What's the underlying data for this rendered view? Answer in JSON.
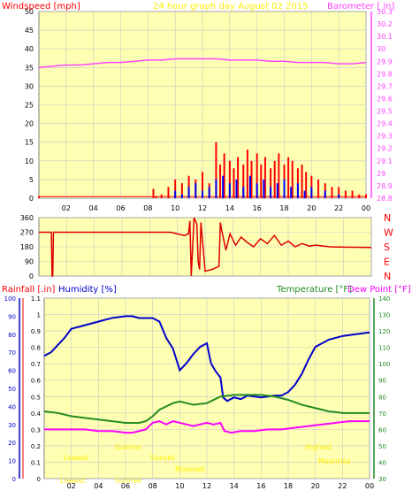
{
  "colors": {
    "plot_bg": "#ffffb3",
    "grid": "#c8c8c8",
    "windspeed": "#ff0000",
    "wind_gust_fill": "#0000ff",
    "barometer": "#ff44ff",
    "wind_dir": "#dd0000",
    "humidity": "#0000cc",
    "temperature": "#228b22",
    "dew_point": "#ff00ff",
    "rainfall_axis": "#ff0000",
    "annotation": "#ffee00",
    "axis_text": "#000000"
  },
  "chart_data": [
    {
      "type": "line",
      "id": "wind-barometer",
      "title": "24 hour graph day   August 02 2015",
      "left_axis_label": "Windspeed [mph]",
      "right_axis_label": "Barometer [ in]",
      "left_ylim": [
        0,
        50
      ],
      "left_ticks": [
        0,
        5,
        10,
        15,
        20,
        25,
        30,
        35,
        40,
        45,
        50
      ],
      "right_ylim": [
        28.8,
        30.3
      ],
      "right_ticks": [
        "28.8",
        "28.9",
        "29",
        "29.1",
        "29.2",
        "29.3",
        "29.4",
        "29.5",
        "29.6",
        "29.7",
        "29.8",
        "29.9",
        "30",
        "30.1",
        "30.2",
        "30.3"
      ],
      "xlim": [
        0,
        24
      ],
      "x_tick_labels": [
        "02",
        "04",
        "06",
        "08",
        "10",
        "12",
        "14",
        "16",
        "18",
        "20",
        "22",
        "00"
      ],
      "grid": true,
      "series": [
        {
          "name": "Windspeed",
          "axis": "left",
          "kind": "bars",
          "color": "#ff0000",
          "x": [
            0,
            8.4,
            8.6,
            9.0,
            9.5,
            10.0,
            10.5,
            11.0,
            11.5,
            12.0,
            12.5,
            13.0,
            13.3,
            13.6,
            14.0,
            14.3,
            14.6,
            15.0,
            15.3,
            15.6,
            16.0,
            16.3,
            16.6,
            17.0,
            17.3,
            17.6,
            18.0,
            18.3,
            18.6,
            19.0,
            19.3,
            19.6,
            20.0,
            20.5,
            21.0,
            21.5,
            22.0,
            22.5,
            23.0,
            23.5,
            24.0
          ],
          "y": [
            0.5,
            2.5,
            0.5,
            1,
            3,
            5,
            4,
            6,
            5,
            7,
            4,
            15,
            9,
            12,
            10,
            8,
            11,
            9,
            13,
            10,
            12,
            9,
            11,
            8,
            10,
            12,
            9,
            11,
            10,
            8,
            9,
            7,
            6,
            5,
            4,
            3,
            3,
            2,
            2,
            1,
            1
          ]
        },
        {
          "name": "Wind gust",
          "axis": "left",
          "kind": "bars",
          "color": "#0000ff",
          "x": [
            10.0,
            10.5,
            11.0,
            11.5,
            12.0,
            12.5,
            13.0,
            13.5,
            14.0,
            14.5,
            15.0,
            15.5,
            16.0,
            16.5,
            17.0,
            17.5,
            18.0,
            18.5,
            19.0,
            19.5,
            20.0,
            21.0,
            22.0
          ],
          "y": [
            2,
            1,
            3,
            4,
            2,
            3,
            5,
            6,
            4,
            5,
            3,
            6,
            4,
            5,
            3,
            4,
            5,
            3,
            4,
            2,
            3,
            2,
            1
          ]
        },
        {
          "name": "Barometer",
          "axis": "right",
          "kind": "line",
          "color": "#ff44ff",
          "x": [
            0,
            1,
            2,
            3,
            4,
            5,
            6,
            7,
            8,
            9,
            10,
            11,
            12,
            13,
            14,
            15,
            16,
            17,
            18,
            19,
            20,
            21,
            22,
            23,
            24
          ],
          "y": [
            29.85,
            29.86,
            29.87,
            29.87,
            29.88,
            29.89,
            29.89,
            29.9,
            29.91,
            29.91,
            29.92,
            29.92,
            29.92,
            29.92,
            29.91,
            29.91,
            29.91,
            29.9,
            29.9,
            29.89,
            29.89,
            29.89,
            29.88,
            29.88,
            29.89
          ]
        }
      ]
    },
    {
      "type": "line",
      "id": "wind-direction",
      "ylim": [
        0,
        360
      ],
      "left_ticks": [
        0,
        90,
        180,
        270,
        360
      ],
      "right_labels": [
        "N",
        "W",
        "S",
        "E",
        "N"
      ],
      "xlim": [
        0,
        24
      ],
      "grid": true,
      "series": [
        {
          "name": "Wind direction",
          "color": "#dd0000",
          "x": [
            0,
            0.9,
            0.95,
            1.0,
            1.05,
            8.0,
            9.5,
            10.5,
            10.8,
            10.9,
            11.0,
            11.2,
            11.4,
            11.5,
            11.6,
            11.7,
            12.0,
            12.5,
            13.0,
            13.1,
            13.2,
            13.5,
            13.8,
            14.2,
            14.6,
            15.0,
            15.5,
            16.0,
            16.5,
            17.0,
            17.5,
            18.0,
            18.5,
            19.0,
            19.5,
            20.0,
            21.0,
            22.0,
            23.0,
            24.0
          ],
          "y": [
            270,
            270,
            0,
            0,
            270,
            270,
            270,
            250,
            260,
            340,
            0,
            360,
            320,
            90,
            40,
            330,
            30,
            40,
            60,
            330,
            280,
            160,
            260,
            190,
            240,
            210,
            180,
            230,
            200,
            250,
            190,
            215,
            180,
            200,
            185,
            190,
            180,
            178,
            177,
            176
          ]
        }
      ]
    },
    {
      "type": "line",
      "id": "humidity-temperature",
      "labels": {
        "rainfall": "Rainfall [.in]",
        "humidity": "Humidity [%]",
        "temperature": "Temperature [°F]",
        "dew_point": "Dew Point [°F]"
      },
      "humidity_ylim": [
        0,
        100
      ],
      "humidity_ticks": [
        0,
        10,
        20,
        30,
        40,
        50,
        60,
        70,
        80,
        90,
        100
      ],
      "rainfall_ylim": [
        0,
        1.1
      ],
      "rainfall_ticks": [
        "0",
        "0.1",
        "0.2",
        "0.3",
        "0.4",
        "0.5",
        "0.6",
        "0.7",
        "0.8",
        "0.9",
        "1",
        "1.1"
      ],
      "temperature_ylim": [
        30,
        140
      ],
      "temperature_ticks": [
        30,
        40,
        50,
        60,
        70,
        80,
        90,
        100,
        110,
        120,
        130,
        140
      ],
      "xlim": [
        0,
        24
      ],
      "x_tick_labels": [
        "02",
        "04",
        "06",
        "08",
        "10",
        "12",
        "14",
        "16",
        "18",
        "20",
        "22",
        "00"
      ],
      "grid": true,
      "series": [
        {
          "name": "Humidity",
          "axis": "humidity",
          "color": "#0000cc",
          "x": [
            0,
            0.5,
            1,
            1.5,
            2,
            3,
            4,
            5,
            6,
            6.5,
            7,
            7.5,
            8,
            8.5,
            9,
            9.5,
            10,
            10.5,
            11,
            11.5,
            12,
            12.3,
            12.6,
            13,
            13.2,
            13.5,
            14,
            14.5,
            15,
            16,
            17,
            17.5,
            18,
            18.5,
            19,
            19.5,
            20,
            21,
            22,
            23,
            24
          ],
          "y": [
            68,
            70,
            74,
            78,
            83,
            85,
            87,
            89,
            90,
            90,
            89,
            89,
            89,
            87,
            78,
            72,
            60,
            64,
            69,
            73,
            75,
            64,
            60,
            56,
            45,
            43,
            45,
            44,
            46,
            45,
            46,
            46,
            48,
            52,
            58,
            66,
            73,
            77,
            79,
            80,
            81
          ]
        },
        {
          "name": "Temperature",
          "axis": "temperature",
          "color": "#228b22",
          "x": [
            0,
            1,
            2,
            3,
            4,
            5,
            6,
            6.5,
            7,
            7.5,
            8,
            8.5,
            9,
            9.5,
            10,
            11,
            12,
            13,
            14,
            15,
            16,
            17,
            18,
            19,
            20,
            21,
            22,
            23,
            24
          ],
          "y": [
            71,
            70,
            68,
            67,
            66,
            65,
            64,
            64,
            64,
            65,
            68,
            72,
            74,
            76,
            77,
            75,
            76,
            80,
            81,
            81,
            81,
            80,
            78,
            75,
            73,
            71,
            70,
            70,
            70
          ]
        },
        {
          "name": "Dew Point",
          "axis": "temperature",
          "color": "#ff00ff",
          "x": [
            0,
            1,
            2,
            3,
            4,
            5,
            6,
            6.5,
            7,
            7.5,
            8,
            8.5,
            9,
            9.5,
            10,
            11,
            12,
            12.5,
            13,
            13.3,
            13.8,
            14.5,
            15.5,
            16.5,
            17.5,
            18.5,
            19.5,
            20.5,
            21.5,
            22.5,
            23.5,
            24
          ],
          "y": [
            60,
            60,
            60,
            60,
            59,
            59,
            58,
            58,
            59,
            60,
            64,
            65,
            63,
            65,
            64,
            62,
            64,
            63,
            64,
            59,
            58,
            59,
            59,
            60,
            60,
            61,
            62,
            63,
            64,
            65,
            65,
            65
          ]
        }
      ],
      "annotations": [
        "Lowest",
        "Sunrise",
        "Sunset",
        "Highest",
        "Moonrise",
        "Moonset",
        "Lowest",
        "Sunrise"
      ]
    }
  ]
}
